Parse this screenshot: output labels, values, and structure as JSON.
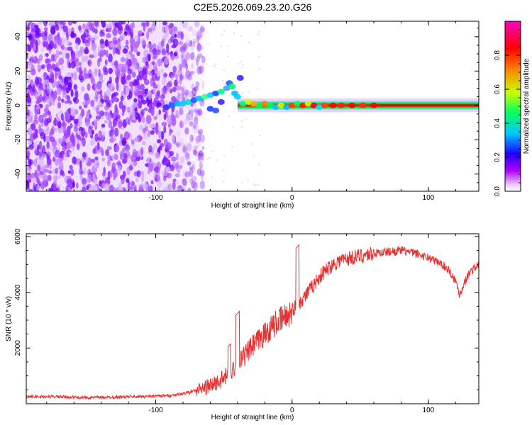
{
  "figure": {
    "title": "C2E5.2026.069.23.20.G26"
  },
  "chart_data": [
    {
      "type": "heatmap",
      "title": "C2E5.2026.069.23.20.G26",
      "xlabel": "Height of straight line (km)",
      "ylabel": "Frequency (Hz)",
      "xlim": [
        -195,
        137
      ],
      "ylim": [
        -50,
        49
      ],
      "xticks": [
        -100,
        0,
        100
      ],
      "xtick_labels": [
        "-100",
        "0",
        "100"
      ],
      "yticks": [
        -40,
        -20,
        0,
        20,
        40
      ],
      "ytick_labels": [
        "-40",
        "-20",
        "0",
        "20",
        "40"
      ],
      "colorbar": {
        "label": "Normalized spectral amplitude",
        "range": [
          0,
          1
        ],
        "ticks": [
          0,
          0.2,
          0.4,
          0.6,
          0.8
        ],
        "tick_labels": [
          "0.0",
          "0.2",
          "0.4",
          "0.6",
          "0.8"
        ],
        "colormap": [
          "#ffffff",
          "#b000ff",
          "#2000ff",
          "#00c8ff",
          "#00ff60",
          "#c8ff00",
          "#ff8000",
          "#ff0000",
          "#ff00c0"
        ]
      },
      "features": [
        {
          "name": "noise-region",
          "x_range": [
            -195,
            -70
          ],
          "f_range": [
            -50,
            49
          ],
          "amplitude": 0.12
        },
        {
          "name": "carrier-line",
          "x_range": [
            -90,
            137
          ],
          "f_center": 0,
          "amplitude_peak": 1.0
        }
      ]
    },
    {
      "type": "line",
      "xlabel": "Height of straight line (km)",
      "ylabel": "SNR (10 * v/v)",
      "xlim": [
        -195,
        137
      ],
      "ylim": [
        0,
        6100
      ],
      "xticks": [
        -100,
        0,
        100
      ],
      "xtick_labels": [
        "-100",
        "0",
        "100"
      ],
      "yticks": [
        2000,
        4000,
        6000
      ],
      "ytick_labels": [
        "2000",
        "4000",
        "6000"
      ],
      "series": [
        {
          "name": "SNR",
          "color": "#e83030",
          "x": [
            -195,
            -170,
            -150,
            -130,
            -110,
            -90,
            -80,
            -70,
            -60,
            -50,
            -45,
            -40,
            -35,
            -30,
            -25,
            -20,
            -15,
            -10,
            -5,
            0,
            5,
            10,
            15,
            20,
            25,
            30,
            35,
            40,
            45,
            50,
            60,
            70,
            80,
            90,
            100,
            110,
            115,
            120,
            123,
            126,
            130,
            137
          ],
          "y": [
            260,
            250,
            220,
            240,
            260,
            290,
            360,
            480,
            640,
            900,
            1150,
            1450,
            1700,
            2000,
            2250,
            2500,
            2750,
            2950,
            3100,
            3350,
            3600,
            3900,
            4200,
            4550,
            4800,
            5000,
            5150,
            5200,
            5250,
            5300,
            5400,
            5450,
            5500,
            5400,
            5250,
            5000,
            4800,
            4400,
            3900,
            4300,
            4700,
            5000
          ]
        }
      ]
    }
  ]
}
